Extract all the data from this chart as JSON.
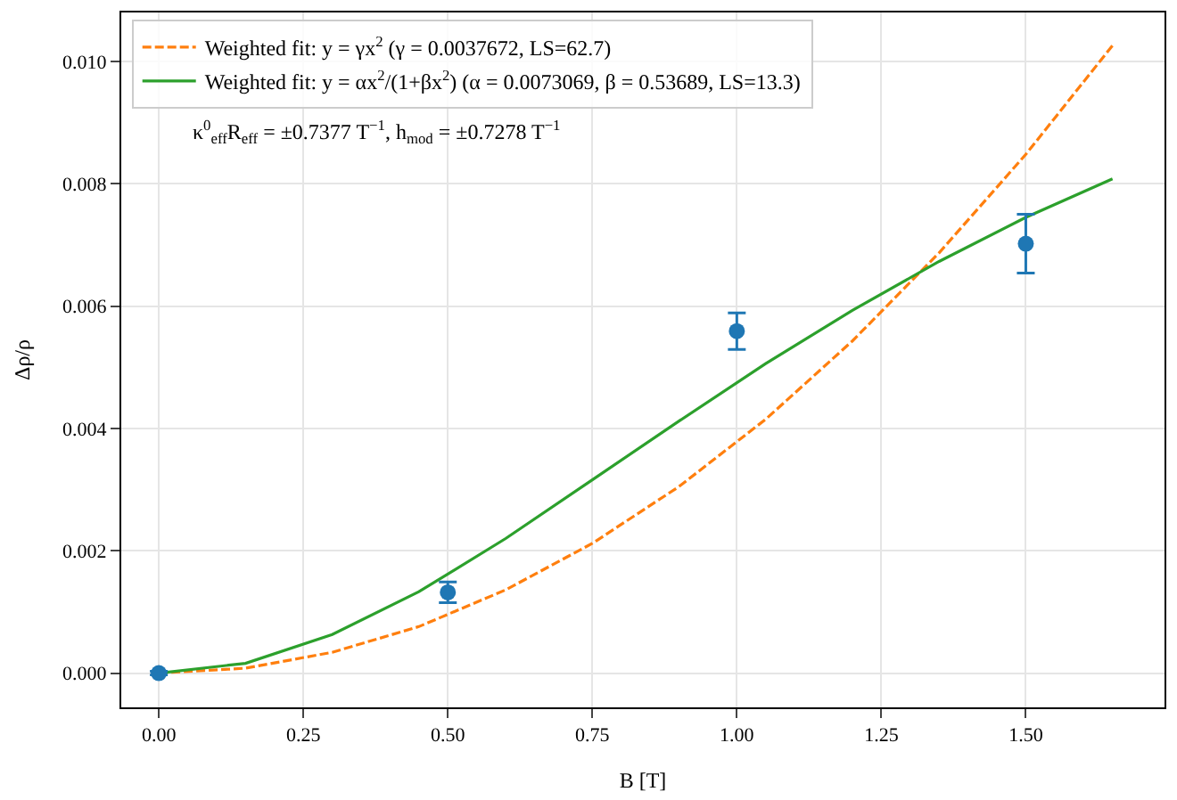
{
  "chart_data": {
    "type": "scatter",
    "xlabel": "B [T]",
    "ylabel": "Δρ/ρ",
    "x": [
      0,
      0.5,
      1.0,
      1.5
    ],
    "series": [
      {
        "name": "Weighted fit: y = γx$^{2}$ (γ = 0.0037672, LS=62.7)",
        "type": "line",
        "color": "#ff7f0e",
        "line_style": "dashed",
        "marker": "none",
        "x": [
          0,
          0.15,
          0.3,
          0.45,
          0.6,
          0.75,
          0.9,
          1.05,
          1.2,
          1.35,
          1.5,
          1.65
        ],
        "values": [
          0,
          8e-05,
          0.00034,
          0.00076,
          0.00136,
          0.00212,
          0.00305,
          0.00415,
          0.00543,
          0.00687,
          0.00848,
          0.01026
        ]
      },
      {
        "name": "Weighted fit: y = αx$^{2}$/(1+βx$^{2}$) (α = 0.0073069, β = 0.53689, LS=13.3)",
        "type": "line",
        "color": "#2ca02c",
        "line_style": "solid",
        "marker": "none",
        "x": [
          0,
          0.15,
          0.3,
          0.45,
          0.6,
          0.75,
          0.9,
          1.05,
          1.2,
          1.35,
          1.5,
          1.65
        ],
        "values": [
          0,
          0.00016,
          0.00063,
          0.00133,
          0.0022,
          0.00316,
          0.00412,
          0.00506,
          0.00593,
          0.00673,
          0.00745,
          0.00808
        ]
      },
      {
        "color": "#1f77b4",
        "marker": "circle",
        "values": [
          0,
          0.00132,
          0.00559,
          0.00702
        ],
        "errors": [
          3e-05,
          0.00017,
          0.0003,
          0.00048
        ]
      }
    ],
    "annotations": [
      "κ$^{0}$$_{eff}$R$_{eff}$ = ±0.7377 T$^{−1}$, h$_{mod}$ = ±0.7278 T$^{−1}$"
    ],
    "xlim": [
      -0.065,
      1.74
    ],
    "ylim": [
      -0.00056,
      0.0108
    ],
    "xticks": [
      {
        "value": 0,
        "label": "0.00"
      },
      0.25,
      {
        "value": 0.5,
        "label": "0.50"
      },
      0.75,
      {
        "value": 1,
        "label": "1.00"
      },
      1.25,
      {
        "value": 1.5,
        "label": "1.50"
      }
    ],
    "yticks": [
      {
        "value": 0,
        "label": "0.000"
      },
      0.002,
      0.004,
      0.006,
      0.008,
      {
        "value": 0.01,
        "label": "0.010"
      }
    ],
    "grid": true,
    "legend": "top left"
  }
}
